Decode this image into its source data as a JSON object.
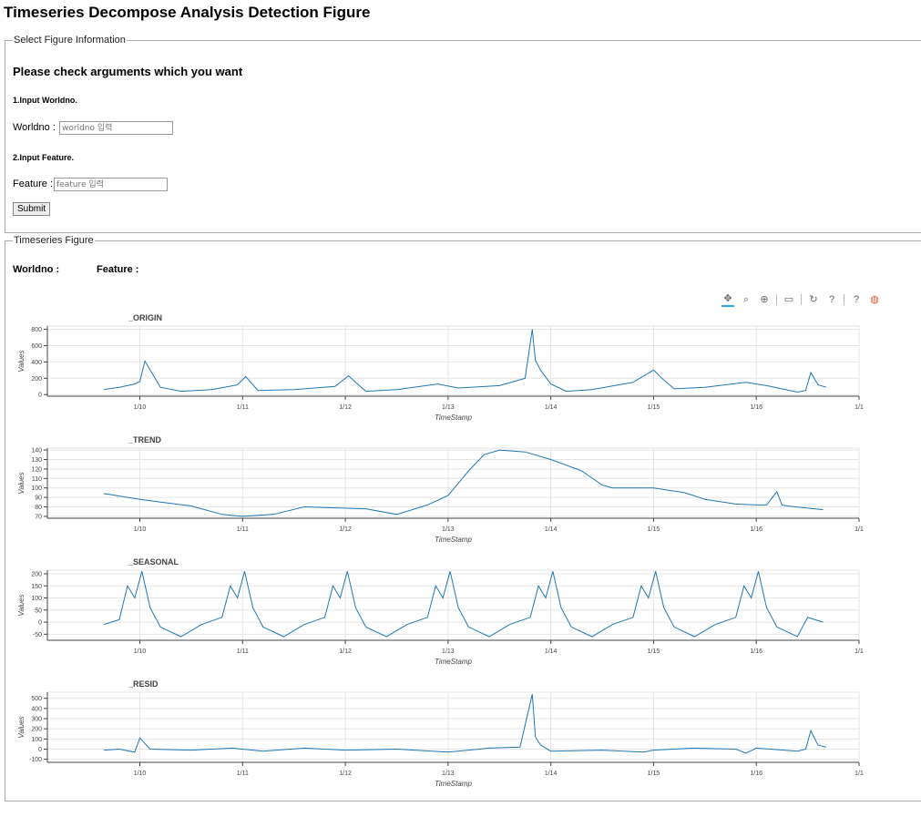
{
  "page_title": "Timeseries Decompose Analysis Detection Figure",
  "form": {
    "legend": "Select Figure Information",
    "heading": "Please check arguments which you want",
    "step1": "1.Input Worldno.",
    "worldno_label": "Worldno :",
    "worldno_placeholder": "worldno 입력",
    "step2": "2.Input Feature.",
    "feature_label": "Feature :",
    "feature_placeholder": "feature 입력",
    "submit_label": "Submit"
  },
  "figure": {
    "legend": "Timeseries Figure",
    "worldno_label": "Worldno :",
    "feature_label": "Feature :"
  },
  "toolbar": [
    {
      "name": "pan-icon",
      "glyph": "✥"
    },
    {
      "name": "box-zoom-icon",
      "glyph": "⌕"
    },
    {
      "name": "wheel-zoom-icon",
      "glyph": "⊕"
    },
    {
      "name": "save-icon",
      "glyph": "▭"
    },
    {
      "name": "reset-icon",
      "glyph": "↻"
    },
    {
      "name": "help-icon",
      "glyph": "?"
    },
    {
      "name": "hover-help-icon",
      "glyph": "?"
    },
    {
      "name": "bokeh-logo-icon",
      "glyph": "◍"
    }
  ],
  "colors": {
    "line": "#1f77b4",
    "grid": "#e5e5e5",
    "accent": "#26aae1"
  },
  "chart_data": [
    {
      "type": "line",
      "title": "_ORIGIN",
      "xlabel": "TimeStamp",
      "ylabel": "Values",
      "x_ticks": [
        "1/10",
        "1/11",
        "1/12",
        "1/13",
        "1/14",
        "1/15",
        "1/16",
        "1/1"
      ],
      "xlim": [
        9.1,
        17.0
      ],
      "ylim": [
        -20,
        840
      ],
      "y_ticks": [
        0,
        200,
        400,
        600,
        800
      ],
      "series": [
        {
          "x": [
            9.65,
            9.8,
            9.95,
            10.0,
            10.05,
            10.2,
            10.4,
            10.7,
            10.95,
            11.03,
            11.15,
            11.5,
            11.9,
            12.03,
            12.2,
            12.5,
            12.9,
            13.1,
            13.5,
            13.75,
            13.82,
            13.85,
            13.9,
            14.0,
            14.15,
            14.4,
            14.8,
            15.0,
            15.08,
            15.2,
            15.5,
            15.9,
            16.1,
            16.4,
            16.48,
            16.53,
            16.6,
            16.68
          ],
          "y": [
            60,
            90,
            130,
            160,
            410,
            90,
            40,
            60,
            120,
            220,
            50,
            60,
            100,
            230,
            40,
            60,
            130,
            80,
            110,
            200,
            800,
            420,
            300,
            130,
            40,
            60,
            150,
            300,
            200,
            70,
            90,
            150,
            110,
            30,
            50,
            270,
            120,
            90
          ]
        }
      ]
    },
    {
      "type": "line",
      "title": "_TREND",
      "xlabel": "TimeStamp",
      "ylabel": "Values",
      "x_ticks": [
        "1/10",
        "1/11",
        "1/12",
        "1/13",
        "1/14",
        "1/15",
        "1/16",
        "1/1"
      ],
      "xlim": [
        9.1,
        17.0
      ],
      "ylim": [
        68,
        142
      ],
      "y_ticks": [
        70,
        80,
        90,
        100,
        110,
        120,
        130,
        140
      ],
      "series": [
        {
          "x": [
            9.65,
            10.0,
            10.2,
            10.5,
            10.8,
            11.0,
            11.3,
            11.6,
            11.9,
            12.2,
            12.5,
            12.8,
            13.0,
            13.2,
            13.35,
            13.5,
            13.75,
            14.0,
            14.3,
            14.5,
            14.6,
            15.0,
            15.3,
            15.5,
            15.8,
            16.0,
            16.1,
            16.2,
            16.25,
            16.3,
            16.65
          ],
          "y": [
            94,
            88,
            85,
            81,
            72,
            70,
            72,
            80,
            79,
            78,
            72,
            82,
            92,
            118,
            135,
            140,
            138,
            130,
            118,
            103,
            100,
            100,
            95,
            88,
            83,
            82,
            82,
            96,
            82,
            81,
            77
          ]
        }
      ]
    },
    {
      "type": "line",
      "title": "_SEASONAL",
      "xlabel": "TimeStamp",
      "ylabel": "Values",
      "x_ticks": [
        "1/10",
        "1/11",
        "1/12",
        "1/13",
        "1/14",
        "1/15",
        "1/16",
        "1/1"
      ],
      "xlim": [
        9.1,
        17.0
      ],
      "ylim": [
        -75,
        215
      ],
      "y_ticks": [
        -50,
        0,
        50,
        100,
        150,
        200
      ],
      "series": [
        {
          "x": [
            9.65,
            9.8,
            9.88,
            9.95,
            10.02,
            10.1,
            10.2,
            10.4,
            10.6,
            10.8,
            10.88,
            10.95,
            11.02,
            11.1,
            11.2,
            11.4,
            11.6,
            11.8,
            11.88,
            11.95,
            12.02,
            12.1,
            12.2,
            12.4,
            12.6,
            12.8,
            12.88,
            12.95,
            13.02,
            13.1,
            13.2,
            13.4,
            13.6,
            13.8,
            13.88,
            13.95,
            14.02,
            14.1,
            14.2,
            14.4,
            14.6,
            14.8,
            14.88,
            14.95,
            15.02,
            15.1,
            15.2,
            15.4,
            15.6,
            15.8,
            15.88,
            15.95,
            16.02,
            16.1,
            16.2,
            16.4,
            16.5,
            16.65
          ],
          "y": [
            -10,
            10,
            150,
            100,
            210,
            60,
            -20,
            -60,
            -10,
            20,
            150,
            100,
            210,
            60,
            -20,
            -60,
            -10,
            20,
            150,
            100,
            210,
            60,
            -20,
            -60,
            -10,
            20,
            150,
            100,
            210,
            60,
            -20,
            -60,
            -10,
            20,
            150,
            100,
            210,
            60,
            -20,
            -60,
            -10,
            20,
            150,
            100,
            210,
            60,
            -20,
            -60,
            -10,
            20,
            150,
            100,
            210,
            60,
            -20,
            -60,
            20,
            0
          ]
        }
      ]
    },
    {
      "type": "line",
      "title": "_RESID",
      "xlabel": "TimeStamp",
      "ylabel": "Values",
      "x_ticks": [
        "1/10",
        "1/11",
        "1/12",
        "1/13",
        "1/14",
        "1/15",
        "1/16",
        "1/1"
      ],
      "xlim": [
        9.1,
        17.0
      ],
      "ylim": [
        -130,
        560
      ],
      "y_ticks": [
        -100,
        0,
        100,
        200,
        300,
        400,
        500
      ],
      "series": [
        {
          "x": [
            9.65,
            9.8,
            9.95,
            10.0,
            10.1,
            10.5,
            10.9,
            11.2,
            11.6,
            12.0,
            12.5,
            13.0,
            13.4,
            13.7,
            13.82,
            13.85,
            13.9,
            14.0,
            14.5,
            14.9,
            15.0,
            15.4,
            15.8,
            15.9,
            16.0,
            16.4,
            16.48,
            16.53,
            16.6,
            16.68
          ],
          "y": [
            -10,
            0,
            -30,
            110,
            0,
            -10,
            10,
            -20,
            10,
            -10,
            0,
            -30,
            10,
            20,
            540,
            120,
            40,
            -20,
            -10,
            -30,
            -10,
            10,
            0,
            -40,
            10,
            -20,
            0,
            180,
            40,
            20
          ]
        }
      ]
    }
  ]
}
